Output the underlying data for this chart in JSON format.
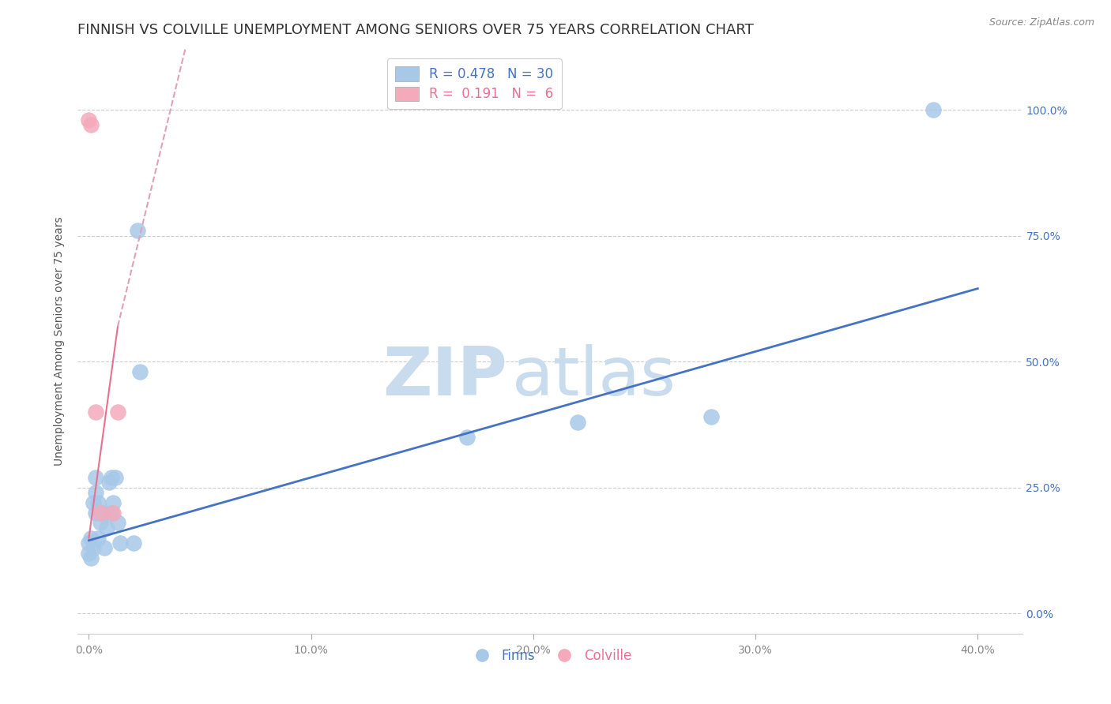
{
  "title": "FINNISH VS COLVILLE UNEMPLOYMENT AMONG SENIORS OVER 75 YEARS CORRELATION CHART",
  "source": "Source: ZipAtlas.com",
  "xlabel_ticks": [
    "0.0%",
    "10.0%",
    "20.0%",
    "30.0%",
    "40.0%"
  ],
  "xlabel_tick_vals": [
    0.0,
    0.1,
    0.2,
    0.3,
    0.4
  ],
  "ylabel": "Unemployment Among Seniors over 75 years",
  "right_ytick_vals": [
    0.0,
    0.25,
    0.5,
    0.75,
    1.0
  ],
  "right_ytick_labels": [
    "0.0%",
    "25.0%",
    "50.0%",
    "75.0%",
    "100.0%"
  ],
  "finns_x": [
    0.0,
    0.0,
    0.001,
    0.001,
    0.002,
    0.002,
    0.003,
    0.003,
    0.003,
    0.004,
    0.004,
    0.005,
    0.006,
    0.007,
    0.007,
    0.008,
    0.009,
    0.01,
    0.01,
    0.011,
    0.012,
    0.013,
    0.014,
    0.02,
    0.022,
    0.023,
    0.17,
    0.22,
    0.28,
    0.38
  ],
  "finns_y": [
    0.14,
    0.12,
    0.15,
    0.11,
    0.13,
    0.22,
    0.2,
    0.27,
    0.24,
    0.22,
    0.15,
    0.18,
    0.2,
    0.13,
    0.2,
    0.17,
    0.26,
    0.2,
    0.27,
    0.22,
    0.27,
    0.18,
    0.14,
    0.14,
    0.76,
    0.48,
    0.35,
    0.38,
    0.39,
    1.0
  ],
  "colville_x": [
    0.0,
    0.001,
    0.003,
    0.005,
    0.011,
    0.013
  ],
  "colville_y": [
    0.98,
    0.97,
    0.4,
    0.2,
    0.2,
    0.4
  ],
  "finns_R": 0.478,
  "finns_N": 30,
  "colville_R": 0.191,
  "colville_N": 6,
  "finns_color": "#A8C8E8",
  "colville_color": "#F4AABB",
  "finns_line_color": "#4472C4",
  "colville_line_color": "#E87090",
  "colville_line_dashed_color": "#E0A0B8",
  "watermark_zip": "ZIP",
  "watermark_atlas": "atlas",
  "watermark_color": "#C8DCEE",
  "background_color": "#FFFFFF",
  "title_fontsize": 13,
  "axis_label_fontsize": 10,
  "tick_fontsize": 10,
  "legend_fontsize": 12
}
